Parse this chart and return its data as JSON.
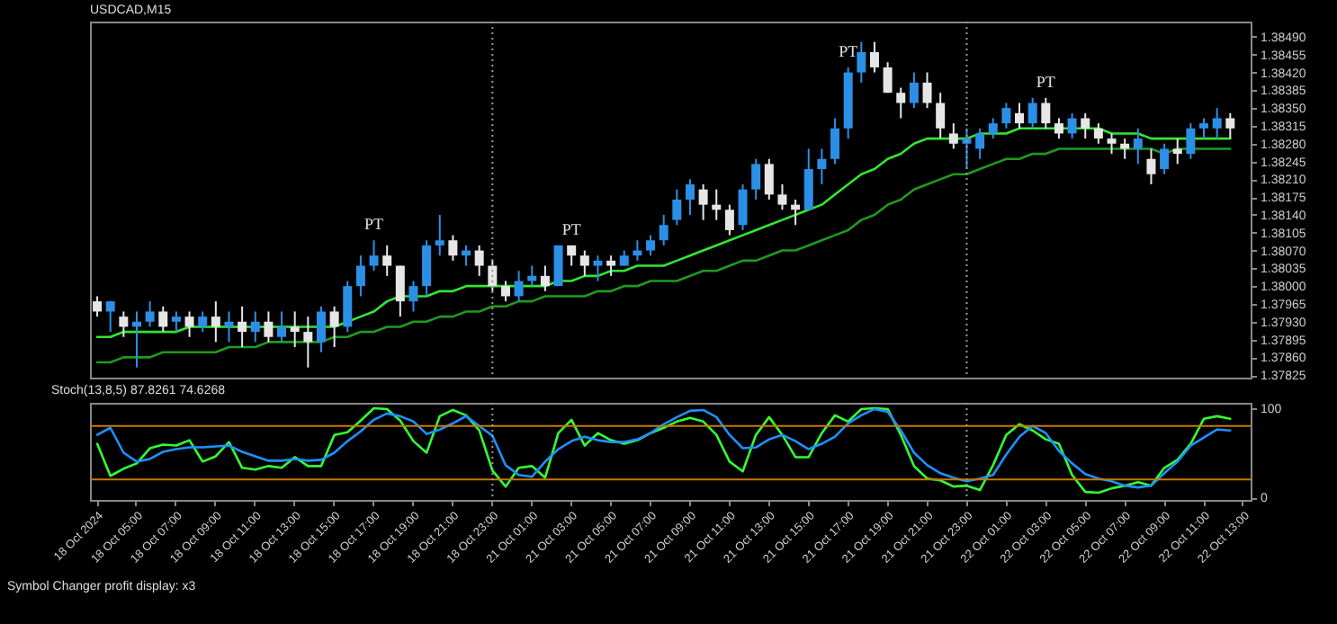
{
  "chart_data": [
    {
      "type": "candlestick",
      "title": "USDCAD,M15",
      "tick_labels": "y",
      "categories": [
        "18 Oct 2024",
        null,
        null,
        "18 Oct 05:00",
        null,
        null,
        "18 Oct 07:00",
        null,
        null,
        "18 Oct 09:00",
        null,
        null,
        "18 Oct 11:00",
        null,
        null,
        "18 Oct 13:00",
        null,
        null,
        "18 Oct 15:00",
        null,
        null,
        "18 Oct 17:00",
        null,
        null,
        "18 Oct 19:00",
        null,
        null,
        "18 Oct 21:00",
        null,
        null,
        "18 Oct 23:00",
        null,
        null,
        "21 Oct 01:00",
        null,
        null,
        "21 Oct 03:00",
        null,
        null,
        "21 Oct 05:00",
        null,
        null,
        "21 Oct 07:00",
        null,
        null,
        "21 Oct 09:00",
        null,
        null,
        "21 Oct 11:00",
        null,
        null,
        "21 Oct 13:00",
        null,
        null,
        "21 Oct 15:00",
        null,
        null,
        "21 Oct 17:00",
        null,
        null,
        "21 Oct 19:00",
        null,
        null,
        "21 Oct 21:00",
        null,
        null,
        "21 Oct 23:00",
        null,
        null,
        "22 Oct 01:00",
        null,
        null,
        "22 Oct 03:00",
        null,
        null,
        "22 Oct 05:00",
        null,
        null,
        "22 Oct 07:00",
        null,
        null,
        "22 Oct 09:00",
        null,
        null,
        "22 Oct 11:00",
        null,
        null,
        "22 Oct 13:00"
      ],
      "ohlc": [
        [
          1.3797,
          1.3798,
          1.3794,
          1.3795
        ],
        [
          1.3795,
          1.3797,
          1.3791,
          1.3797
        ],
        [
          1.3794,
          1.3795,
          1.379,
          1.3792
        ],
        [
          1.3792,
          1.3795,
          1.3784,
          1.3793
        ],
        [
          1.3793,
          1.3797,
          1.3792,
          1.3795
        ],
        [
          1.3795,
          1.3796,
          1.3791,
          1.3792
        ],
        [
          1.3793,
          1.3795,
          1.3791,
          1.3794
        ],
        [
          1.3794,
          1.3795,
          1.379,
          1.3792
        ],
        [
          1.3792,
          1.3795,
          1.3791,
          1.3794
        ],
        [
          1.3794,
          1.3797,
          1.3789,
          1.3792
        ],
        [
          1.3792,
          1.3795,
          1.3789,
          1.3793
        ],
        [
          1.3793,
          1.3796,
          1.3788,
          1.3791
        ],
        [
          1.3791,
          1.3795,
          1.3789,
          1.3793
        ],
        [
          1.3793,
          1.3795,
          1.3789,
          1.379
        ],
        [
          1.379,
          1.3795,
          1.3789,
          1.3792
        ],
        [
          1.3792,
          1.3795,
          1.3788,
          1.3791
        ],
        [
          1.3791,
          1.3794,
          1.3784,
          1.3789
        ],
        [
          1.3789,
          1.3796,
          1.3787,
          1.3795
        ],
        [
          1.3795,
          1.3796,
          1.3788,
          1.3792
        ],
        [
          1.3792,
          1.3801,
          1.3791,
          1.38
        ],
        [
          1.38,
          1.3806,
          1.3798,
          1.3804
        ],
        [
          1.3804,
          1.3809,
          1.3803,
          1.3806
        ],
        [
          1.3806,
          1.3808,
          1.3802,
          1.3804
        ],
        [
          1.3804,
          1.3804,
          1.3794,
          1.3797
        ],
        [
          1.3797,
          1.3801,
          1.3795,
          1.38
        ],
        [
          1.38,
          1.3809,
          1.3798,
          1.3808
        ],
        [
          1.3808,
          1.3814,
          1.3806,
          1.3809
        ],
        [
          1.3809,
          1.381,
          1.3805,
          1.3806
        ],
        [
          1.3806,
          1.3808,
          1.3804,
          1.3807
        ],
        [
          1.3807,
          1.3808,
          1.3802,
          1.3804
        ],
        [
          1.3804,
          1.3805,
          1.3799,
          1.38
        ],
        [
          1.38,
          1.3801,
          1.3797,
          1.3798
        ],
        [
          1.3798,
          1.3803,
          1.3797,
          1.3801
        ],
        [
          1.3801,
          1.3804,
          1.38,
          1.3802
        ],
        [
          1.3802,
          1.3804,
          1.3799,
          1.38
        ],
        [
          1.38,
          1.3808,
          1.38,
          1.3808
        ],
        [
          1.3808,
          1.3808,
          1.3804,
          1.3806
        ],
        [
          1.3806,
          1.3807,
          1.3802,
          1.3804
        ],
        [
          1.3804,
          1.3806,
          1.3801,
          1.3805
        ],
        [
          1.3805,
          1.3806,
          1.3802,
          1.3804
        ],
        [
          1.3804,
          1.3807,
          1.3804,
          1.3806
        ],
        [
          1.3806,
          1.3809,
          1.3805,
          1.3807
        ],
        [
          1.3807,
          1.381,
          1.3806,
          1.3809
        ],
        [
          1.3809,
          1.3814,
          1.3808,
          1.3812
        ],
        [
          1.3813,
          1.3819,
          1.3812,
          1.3817
        ],
        [
          1.3817,
          1.3821,
          1.3814,
          1.382
        ],
        [
          1.3819,
          1.382,
          1.3813,
          1.3816
        ],
        [
          1.3816,
          1.3819,
          1.3813,
          1.3815
        ],
        [
          1.3815,
          1.3816,
          1.381,
          1.3811
        ],
        [
          1.3812,
          1.382,
          1.3811,
          1.3819
        ],
        [
          1.3819,
          1.3825,
          1.3817,
          1.3824
        ],
        [
          1.3824,
          1.3825,
          1.3817,
          1.3818
        ],
        [
          1.3818,
          1.382,
          1.3815,
          1.3816
        ],
        [
          1.3816,
          1.3817,
          1.3812,
          1.3815
        ],
        [
          1.3815,
          1.3827,
          1.3815,
          1.3823
        ],
        [
          1.3823,
          1.3827,
          1.382,
          1.3825
        ],
        [
          1.3825,
          1.3833,
          1.3824,
          1.3831
        ],
        [
          1.3831,
          1.3843,
          1.3829,
          1.3842
        ],
        [
          1.3842,
          1.3848,
          1.384,
          1.3846
        ],
        [
          1.3846,
          1.3848,
          1.3842,
          1.3843
        ],
        [
          1.3843,
          1.3844,
          1.3838,
          1.3838
        ],
        [
          1.3838,
          1.3839,
          1.3833,
          1.3836
        ],
        [
          1.3836,
          1.3842,
          1.3835,
          1.384
        ],
        [
          1.384,
          1.3842,
          1.3835,
          1.3836
        ],
        [
          1.3836,
          1.3838,
          1.3829,
          1.3831
        ],
        [
          1.383,
          1.3832,
          1.3827,
          1.3828
        ],
        [
          1.3828,
          1.3831,
          1.3823,
          1.3829
        ],
        [
          1.3827,
          1.3831,
          1.3825,
          1.383
        ],
        [
          1.383,
          1.3833,
          1.3829,
          1.3832
        ],
        [
          1.3832,
          1.3836,
          1.3831,
          1.3835
        ],
        [
          1.3834,
          1.3836,
          1.3831,
          1.3832
        ],
        [
          1.3832,
          1.3837,
          1.3831,
          1.3836
        ],
        [
          1.3836,
          1.3837,
          1.3831,
          1.3832
        ],
        [
          1.3832,
          1.3833,
          1.3829,
          1.383
        ],
        [
          1.383,
          1.3834,
          1.3829,
          1.3833
        ],
        [
          1.3833,
          1.3834,
          1.3829,
          1.3831
        ],
        [
          1.3831,
          1.3832,
          1.3828,
          1.3829
        ],
        [
          1.3829,
          1.383,
          1.3826,
          1.3828
        ],
        [
          1.3828,
          1.3829,
          1.3825,
          1.3827
        ],
        [
          1.3827,
          1.3831,
          1.3824,
          1.3829
        ],
        [
          1.3825,
          1.3827,
          1.382,
          1.3822
        ],
        [
          1.3823,
          1.3828,
          1.3822,
          1.3827
        ],
        [
          1.3827,
          1.3829,
          1.3824,
          1.3826
        ],
        [
          1.3826,
          1.3832,
          1.3825,
          1.3831
        ],
        [
          1.3831,
          1.3833,
          1.3829,
          1.3832
        ],
        [
          1.3831,
          1.3835,
          1.3829,
          1.3833
        ],
        [
          1.3833,
          1.3834,
          1.3829,
          1.3831
        ],
        null
      ],
      "colors": [
        "#e6e6e6",
        "#2b8fe6",
        "#e6e6e6",
        "#2b8fe6",
        "#2b8fe6",
        "#e6e6e6",
        "#2b8fe6",
        "#e6e6e6",
        "#2b8fe6",
        "#e6e6e6",
        "#2b8fe6",
        "#e6e6e6",
        "#2b8fe6",
        "#e6e6e6",
        "#2b8fe6",
        "#e6e6e6",
        "#e6e6e6",
        "#2b8fe6",
        "#e6e6e6",
        "#2b8fe6",
        "#2b8fe6",
        "#2b8fe6",
        "#e6e6e6",
        "#e6e6e6",
        "#2b8fe6",
        "#2b8fe6",
        "#2b8fe6",
        "#e6e6e6",
        "#2b8fe6",
        "#e6e6e6",
        "#e6e6e6",
        "#e6e6e6",
        "#2b8fe6",
        "#2b8fe6",
        "#e6e6e6",
        "#2b8fe6",
        "#e6e6e6",
        "#e6e6e6",
        "#2b8fe6",
        "#e6e6e6",
        "#2b8fe6",
        "#2b8fe6",
        "#2b8fe6",
        "#2b8fe6",
        "#2b8fe6",
        "#2b8fe6",
        "#e6e6e6",
        "#e6e6e6",
        "#e6e6e6",
        "#2b8fe6",
        "#2b8fe6",
        "#e6e6e6",
        "#e6e6e6",
        "#e6e6e6",
        "#2b8fe6",
        "#2b8fe6",
        "#2b8fe6",
        "#2b8fe6",
        "#2b8fe6",
        "#e6e6e6",
        "#e6e6e6",
        "#e6e6e6",
        "#2b8fe6",
        "#e6e6e6",
        "#e6e6e6",
        "#e6e6e6",
        "#2b8fe6",
        "#2b8fe6",
        "#2b8fe6",
        "#2b8fe6",
        "#e6e6e6",
        "#2b8fe6",
        "#e6e6e6",
        "#e6e6e6",
        "#2b8fe6",
        "#e6e6e6",
        "#e6e6e6",
        "#e6e6e6",
        "#e6e6e6",
        "#2b8fe6",
        "#e6e6e6",
        "#2b8fe6",
        "#e6e6e6",
        "#2b8fe6",
        "#2b8fe6",
        "#2b8fe6",
        "#e6e6e6",
        null
      ],
      "series": [
        {
          "type": "line",
          "color": "#33e633",
          "values": [
            1.379,
            1.379,
            1.3791,
            1.3791,
            1.3791,
            1.3791,
            1.3791,
            1.3792,
            1.3792,
            1.3792,
            1.3792,
            1.3792,
            1.3792,
            1.3792,
            1.3792,
            1.3792,
            1.3792,
            1.3792,
            1.3792,
            1.3793,
            1.3794,
            1.3795,
            1.3797,
            1.3798,
            1.3798,
            1.3798,
            1.3799,
            1.3799,
            1.38,
            1.38,
            1.38,
            1.38,
            1.38,
            1.38,
            1.38,
            1.3801,
            1.3801,
            1.3802,
            1.3802,
            1.3803,
            1.3803,
            1.3804,
            1.3804,
            1.3804,
            1.3805,
            1.3806,
            1.3807,
            1.3808,
            1.3809,
            1.381,
            1.3811,
            1.3812,
            1.3813,
            1.3814,
            1.3815,
            1.3816,
            1.3818,
            1.382,
            1.3822,
            1.3823,
            1.3825,
            1.3826,
            1.3828,
            1.3829,
            1.3829,
            1.3829,
            1.3829,
            1.383,
            1.383,
            1.383,
            1.3831,
            1.3831,
            1.3831,
            1.3831,
            1.3831,
            1.3831,
            1.3831,
            1.383,
            1.383,
            1.383,
            1.3829,
            1.3829,
            1.3829,
            1.3829,
            1.3829,
            1.3829,
            1.3829,
            null
          ]
        },
        {
          "type": "line",
          "color": "#1f9a1f",
          "values": [
            1.3785,
            1.3785,
            1.3786,
            1.3786,
            1.3786,
            1.3787,
            1.3787,
            1.3787,
            1.3787,
            1.3787,
            1.3788,
            1.3788,
            1.3788,
            1.3789,
            1.3789,
            1.3789,
            1.3789,
            1.3789,
            1.379,
            1.379,
            1.3791,
            1.3791,
            1.3792,
            1.3792,
            1.3793,
            1.3793,
            1.3794,
            1.3794,
            1.3795,
            1.3795,
            1.3796,
            1.3796,
            1.3797,
            1.3797,
            1.3798,
            1.3798,
            1.3798,
            1.3798,
            1.3799,
            1.3799,
            1.38,
            1.38,
            1.3801,
            1.3801,
            1.3801,
            1.3802,
            1.3803,
            1.3803,
            1.3804,
            1.3805,
            1.3805,
            1.3806,
            1.3807,
            1.3807,
            1.3808,
            1.3809,
            1.381,
            1.3811,
            1.3813,
            1.3814,
            1.3816,
            1.3817,
            1.3819,
            1.382,
            1.3821,
            1.3822,
            1.3822,
            1.3823,
            1.3824,
            1.3825,
            1.3825,
            1.3826,
            1.3826,
            1.3827,
            1.3827,
            1.3827,
            1.3827,
            1.3827,
            1.3827,
            1.3827,
            1.3827,
            1.3826,
            1.3827,
            1.3827,
            1.3827,
            1.3827,
            1.3827,
            null
          ]
        }
      ],
      "ylim": [
        1.3782,
        1.3852
      ],
      "yticks": [
        1.37825,
        {
          "value": 1.3786,
          "label": "1.37860"
        },
        1.37895,
        {
          "value": 1.3793,
          "label": "1.37930"
        },
        1.37965,
        {
          "value": 1.38,
          "label": "1.38000"
        },
        1.38035,
        {
          "value": 1.3807,
          "label": "1.38070"
        },
        1.38105,
        {
          "value": 1.3814,
          "label": "1.38140"
        },
        1.38175,
        {
          "value": 1.3821,
          "label": "1.38210"
        },
        1.38245,
        {
          "value": 1.3828,
          "label": "1.38280"
        },
        1.38315,
        {
          "value": 1.3835,
          "label": "1.38350"
        },
        1.38385,
        {
          "value": 1.3842,
          "label": "1.38420"
        },
        1.38455,
        {
          "value": 1.3849,
          "label": "1.38490"
        }
      ],
      "ref_lines": [
        {
          "axis": "x",
          "value": "18 Oct 23:00",
          "color": "#9a9a9a",
          "line_style": "dotted"
        },
        {
          "axis": "x",
          "value": "21 Oct 23:00",
          "color": "#9a9a9a",
          "line_style": "dotted"
        }
      ],
      "annotations": [
        {
          "text": "PT",
          "x": "18 Oct 17:00",
          "y": 1.3809
        },
        {
          "text": "PT",
          "x": "21 Oct 03:00",
          "y": 1.3808
        },
        {
          "text": "PT",
          "x": "21 Oct 17:00",
          "y": 1.3843
        },
        {
          "text": "PT",
          "x": "22 Oct 03:00",
          "y": 1.3837
        }
      ]
    },
    {
      "type": "line",
      "title": "Stoch(13,8,5) 87.8261 74.6268",
      "categories": [
        "18 Oct 2024",
        null,
        null,
        "18 Oct 05:00",
        null,
        null,
        "18 Oct 07:00",
        null,
        null,
        "18 Oct 09:00",
        null,
        null,
        "18 Oct 11:00",
        null,
        null,
        "18 Oct 13:00",
        null,
        null,
        "18 Oct 15:00",
        null,
        null,
        "18 Oct 17:00",
        null,
        null,
        "18 Oct 19:00",
        null,
        null,
        "18 Oct 21:00",
        null,
        null,
        "18 Oct 23:00",
        null,
        null,
        "21 Oct 01:00",
        null,
        null,
        "21 Oct 03:00",
        null,
        null,
        "21 Oct 05:00",
        null,
        null,
        "21 Oct 07:00",
        null,
        null,
        "21 Oct 09:00",
        null,
        null,
        "21 Oct 11:00",
        null,
        null,
        "21 Oct 13:00",
        null,
        null,
        "21 Oct 15:00",
        null,
        null,
        "21 Oct 17:00",
        null,
        null,
        "21 Oct 19:00",
        null,
        null,
        "21 Oct 21:00",
        null,
        null,
        "21 Oct 23:00",
        null,
        null,
        "22 Oct 01:00",
        null,
        null,
        "22 Oct 03:00",
        null,
        null,
        "22 Oct 05:00",
        null,
        null,
        "22 Oct 07:00",
        null,
        null,
        "22 Oct 09:00",
        null,
        null,
        "22 Oct 11:00",
        null,
        null,
        "22 Oct 13:00"
      ],
      "series": [
        {
          "color": "#33ff33",
          "values": [
            60,
            24,
            32,
            38,
            55,
            59,
            58,
            64,
            40,
            46,
            62,
            33,
            31,
            35,
            33,
            45,
            35,
            35,
            70,
            73,
            86,
            100,
            99,
            86,
            63,
            50,
            91,
            98,
            92,
            75,
            30,
            12,
            33,
            35,
            22,
            72,
            87,
            58,
            72,
            64,
            60,
            64,
            72,
            78,
            85,
            89,
            85,
            70,
            40,
            29,
            70,
            90,
            70,
            45,
            45,
            72,
            92,
            85,
            99,
            100,
            99,
            70,
            35,
            21,
            19,
            12,
            13,
            8,
            36,
            70,
            82,
            75,
            65,
            60,
            25,
            6,
            5,
            10,
            13,
            17,
            13,
            33,
            42,
            60,
            88,
            91,
            88,
            null
          ]
        },
        {
          "color": "#1e90ff",
          "values": [
            70,
            78,
            50,
            40,
            43,
            51,
            54,
            56,
            56,
            57,
            58,
            51,
            46,
            41,
            41,
            43,
            41,
            42,
            50,
            63,
            74,
            87,
            94,
            91,
            85,
            71,
            76,
            83,
            91,
            80,
            69,
            36,
            25,
            23,
            40,
            54,
            63,
            68,
            64,
            62,
            62,
            65,
            72,
            82,
            90,
            97,
            98,
            90,
            70,
            55,
            56,
            65,
            70,
            63,
            54,
            60,
            68,
            83,
            92,
            99,
            96,
            75,
            50,
            36,
            27,
            22,
            18,
            21,
            25,
            48,
            68,
            80,
            72,
            52,
            38,
            26,
            21,
            18,
            13,
            11,
            13,
            27,
            40,
            58,
            67,
            76,
            75,
            null
          ]
        }
      ],
      "ylim": [
        -3,
        106
      ],
      "yticks": [
        0,
        100
      ],
      "ref_lines": [
        {
          "axis": "y",
          "value": 80,
          "color": "#c87800"
        },
        {
          "axis": "y",
          "value": 20,
          "color": "#c87800"
        },
        {
          "axis": "x",
          "value": "18 Oct 23:00",
          "color": "#9a9a9a",
          "line_style": "dotted"
        },
        {
          "axis": "x",
          "value": "21 Oct 23:00",
          "color": "#9a9a9a",
          "line_style": "dotted"
        }
      ],
      "annotations": [
        "Symbol Changer profit display: x3"
      ]
    }
  ]
}
